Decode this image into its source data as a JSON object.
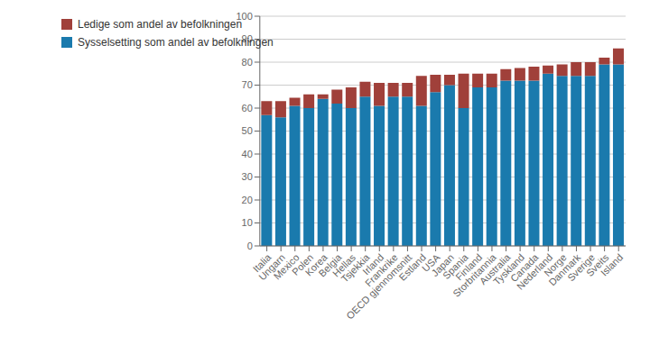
{
  "chart_data": {
    "type": "bar",
    "stacked": true,
    "categories": [
      "Italia",
      "Ungarn",
      "Mexico",
      "Polen",
      "Korea",
      "Belgia",
      "Hellas",
      "Tsjekkia",
      "Irland",
      "Frankrike",
      "OECD gjennomsnitt",
      "Estland",
      "USA",
      "Japan",
      "Spania",
      "Finland",
      "Storbritannia",
      "Australia",
      "Tyskland",
      "Canada",
      "Nederland",
      "Norge",
      "Danmark",
      "Sverige",
      "Sveits",
      "Island"
    ],
    "series": [
      {
        "name": "Sysselsetting som andel av befolkningen",
        "color": "#1a7aad",
        "values": [
          57,
          56,
          61,
          60,
          64,
          62,
          60,
          65,
          61,
          65,
          65,
          61,
          67,
          70,
          60,
          69,
          69,
          72,
          72,
          72,
          75,
          74,
          74,
          74,
          79,
          79
        ]
      },
      {
        "name": "Ledige som andel av befolkningen",
        "color": "#a0403a",
        "values": [
          6,
          7,
          3.5,
          6,
          2,
          6,
          9,
          6.5,
          10,
          6,
          6,
          13,
          7.5,
          4.5,
          15,
          6,
          6,
          5,
          5.5,
          6,
          3.5,
          5,
          6,
          6,
          3,
          7
        ]
      }
    ],
    "ylim": [
      0,
      100
    ],
    "yticks": [
      0,
      10,
      20,
      30,
      40,
      50,
      60,
      70,
      80,
      90,
      100
    ],
    "grid": true,
    "legend": "upper left"
  }
}
